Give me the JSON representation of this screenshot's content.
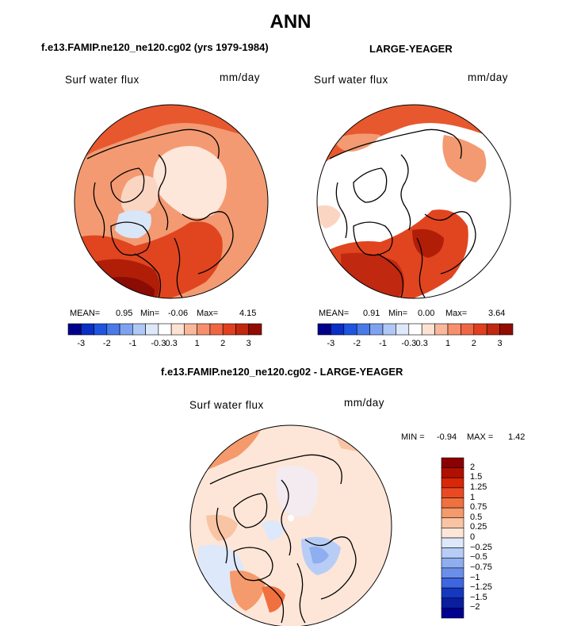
{
  "chart_data": [
    {
      "type": "polar-map",
      "variable": "Surf water flux",
      "units": "mm/day",
      "title": "f.e13.FAMIP.ne120_ne120.cg02 (yrs 1979-1984)",
      "stats": {
        "mean_label": "MEAN=",
        "mean": "0.95",
        "min_label": "Min=",
        "min": "-0.06",
        "max_label": "Max=",
        "max": "4.15"
      },
      "colorbar_ticks": [
        "-3",
        "-2",
        "-1",
        "-0.3",
        "0.3",
        "1",
        "2",
        "3"
      ]
    },
    {
      "type": "polar-map",
      "variable": "Surf water flux",
      "units": "mm/day",
      "title": "LARGE-YEAGER",
      "stats": {
        "mean_label": "MEAN=",
        "mean": "0.91",
        "min_label": "Min=",
        "min": "0.00",
        "max_label": "Max=",
        "max": "3.64"
      },
      "colorbar_ticks": [
        "-3",
        "-2",
        "-1",
        "-0.3",
        "0.3",
        "1",
        "2",
        "3"
      ]
    },
    {
      "type": "polar-map-difference",
      "variable": "Surf water flux",
      "units": "mm/day",
      "title": "f.e13.FAMIP.ne120_ne120.cg02 - LARGE-YEAGER",
      "stats": {
        "min_label": "MIN =",
        "min": "-0.94",
        "max_label": "MAX =",
        "max": "1.42"
      },
      "colorbar_levels": [
        "2",
        "1.5",
        "1.25",
        "1",
        "0.75",
        "0.5",
        "0.25",
        "0",
        "−0.25",
        "−0.5",
        "−0.75",
        "−1",
        "−1.25",
        "−1.5",
        "−2"
      ]
    }
  ],
  "header": {
    "season": "ANN"
  },
  "colors": {
    "horizontal_bar": [
      "#00008b",
      "#0a2fc4",
      "#1f55e0",
      "#4a7ae8",
      "#7ea2ef",
      "#b0c8f5",
      "#dde8fb",
      "#ffffff",
      "#fde2d3",
      "#f9b79b",
      "#f68f6d",
      "#ef6644",
      "#e04020",
      "#c02810",
      "#900d04"
    ],
    "vertical_bar": [
      "#8b0000",
      "#b01000",
      "#d82808",
      "#ea4a22",
      "#f07040",
      "#f59a6c",
      "#f9c4a4",
      "#fde6d8",
      "#dde8fb",
      "#b8cdf5",
      "#8eaef0",
      "#6a8fea",
      "#3e66e0",
      "#1538c0",
      "#0a1ea0",
      "#000090"
    ]
  }
}
